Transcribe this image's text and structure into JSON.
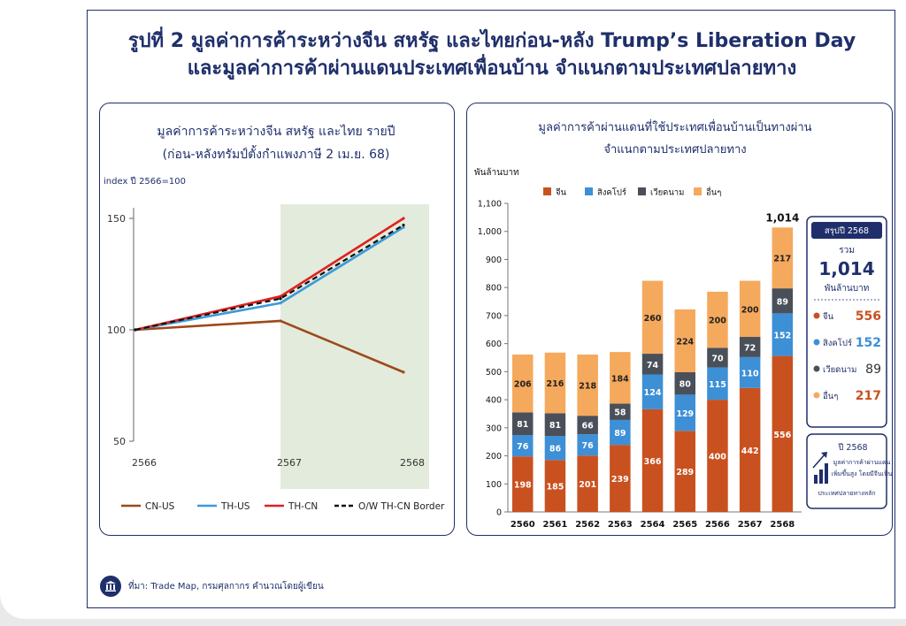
{
  "figure": {
    "title_line1": "รูปที่ 2 มูลค่าการค้าระหว่างจีน สหรัฐ และไทยก่อน-หลัง Trump’s Liberation Day",
    "title_line2": "และมูลค่าการค้าผ่านแดนประเทศเพื่อนบ้าน จำแนกตามประเทศปลายทาง",
    "source": "ที่มา: Trade Map, กรมศุลกากร  คำนวณโดยผู้เขียน"
  },
  "colors": {
    "navy": "#1f2f6b",
    "cn_us": "#9c4a1a",
    "th_us": "#3a9ad9",
    "th_cn": "#e02020",
    "border": "#111111",
    "shade": "#e3ebdc",
    "china": "#c9511f",
    "singapore": "#3d8fd6",
    "vietnam": "#4a5059",
    "others": "#f5a95c"
  },
  "chart_data": [
    {
      "type": "line",
      "title": "มูลค่าการค้าระหว่างจีน สหรัฐ และไทย รายปี",
      "subtitle": "(ก่อน-หลังทรัมป์ตั้งกำแพงภาษี 2 เม.ย. 68)",
      "ylabel": "index ปี 2566=100",
      "xlabel": "",
      "x": [
        "2566",
        "2567",
        "2568"
      ],
      "y_ticks": [
        "150",
        "100",
        "50"
      ],
      "ylim": [
        50,
        150
      ],
      "shaded_region": "2567-2568",
      "grid": false,
      "legend_position": "bottom",
      "series": [
        {
          "name": "CN-US",
          "color": "#9c4a1a",
          "dash": false,
          "values": [
            100,
            104,
            81
          ]
        },
        {
          "name": "TH-US",
          "color": "#3a9ad9",
          "dash": false,
          "values": [
            100,
            112,
            146
          ]
        },
        {
          "name": "TH-CN",
          "color": "#e02020",
          "dash": false,
          "values": [
            100,
            115,
            150
          ]
        },
        {
          "name": "O/W TH-CN Border",
          "color": "#111111",
          "dash": true,
          "values": [
            100,
            114,
            147
          ]
        }
      ]
    },
    {
      "type": "bar",
      "stacked": true,
      "title": "มูลค่าการค้าผ่านแดนที่ใช้ประเทศเพื่อนบ้านเป็นทางผ่าน",
      "subtitle": "จำแนกตามประเทศปลายทาง",
      "ylabel": "พันล้านบาท",
      "xlabel": "",
      "categories": [
        "2560",
        "2561",
        "2562",
        "2563",
        "2564",
        "2565",
        "2566",
        "2567",
        "2568"
      ],
      "ylim": [
        0,
        1100
      ],
      "y_ticks": [
        "0",
        "100",
        "200",
        "300",
        "400",
        "500",
        "600",
        "700",
        "800",
        "900",
        "1,000",
        "1,100"
      ],
      "legend_position": "top",
      "grid": false,
      "total_label": "1,014",
      "series": [
        {
          "name": "จีน",
          "color": "#c9511f",
          "values": [
            198,
            185,
            201,
            239,
            366,
            289,
            400,
            442,
            556
          ]
        },
        {
          "name": "สิงคโปร์",
          "color": "#3d8fd6",
          "values": [
            76,
            86,
            76,
            89,
            124,
            129,
            115,
            110,
            152
          ]
        },
        {
          "name": "เวียดนาม",
          "color": "#4a5059",
          "values": [
            81,
            81,
            66,
            58,
            74,
            80,
            70,
            72,
            89
          ]
        },
        {
          "name": "อื่นๆ",
          "color": "#f5a95c",
          "values": [
            206,
            216,
            218,
            184,
            260,
            224,
            200,
            200,
            217
          ]
        }
      ]
    }
  ],
  "summary": {
    "header": "สรุปปี 2568",
    "total_label": "รวม",
    "total_value": "1,014",
    "unit": "พันล้านบาท",
    "items": [
      {
        "label": "จีน",
        "value": "556",
        "color": "#c9511f"
      },
      {
        "label": "สิงคโปร์",
        "value": "152",
        "color": "#3d8fd6"
      },
      {
        "label": "เวียดนาม",
        "value": "89",
        "color": "#4a5059"
      },
      {
        "label": "อื่นๆ",
        "value": "217",
        "color": "#f5a95c"
      }
    ]
  },
  "note": {
    "year": "ปี 2568",
    "lines": [
      "มูลค่าการค้าผ่านแดน",
      "เพิ่มขึ้นสูง โดยมีจีนเป็น",
      "ประเทศปลายทางหลัก"
    ]
  }
}
